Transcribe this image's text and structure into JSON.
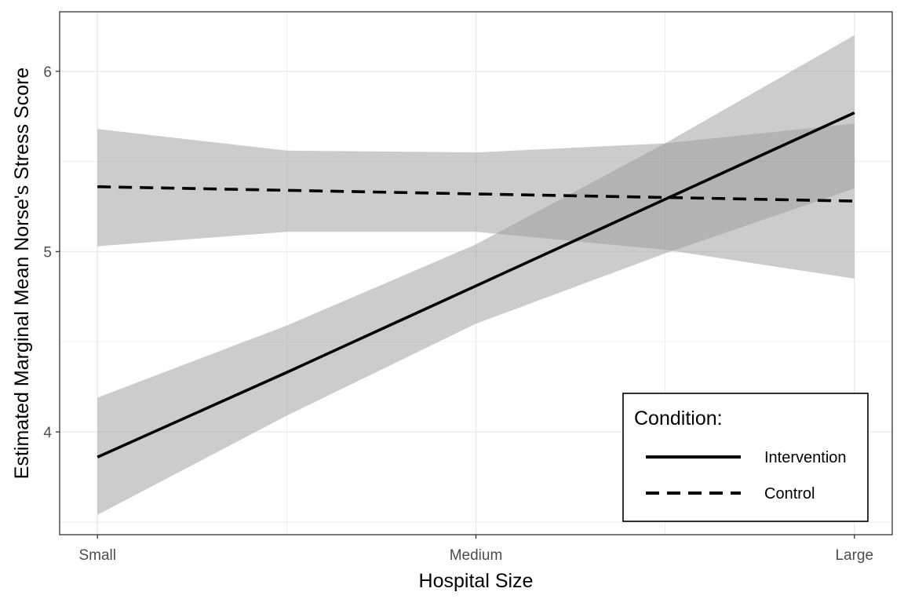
{
  "chart_data": {
    "type": "line",
    "title": "",
    "xlabel": "Hospital Size",
    "ylabel": "Estimated Marginal Mean Norse's Stress Score",
    "categories": [
      "Small",
      "Medium",
      "Large"
    ],
    "x_positions": [
      0,
      1,
      2
    ],
    "xlim": [
      -0.1,
      2.1
    ],
    "ylim": [
      3.43,
      6.33
    ],
    "y_ticks": [
      4,
      5,
      6
    ],
    "grid": true,
    "legend": {
      "title": "Condition:",
      "position": "bottom-right"
    },
    "series": [
      {
        "name": "Intervention",
        "line_style": "solid",
        "x": [
          0,
          0.5,
          1,
          1.5,
          2
        ],
        "values": [
          3.86,
          4.33,
          4.81,
          5.29,
          5.77
        ],
        "ci_lower": [
          3.54,
          4.09,
          4.6,
          4.99,
          5.35
        ],
        "ci_upper": [
          4.19,
          4.59,
          5.04,
          5.6,
          6.2
        ]
      },
      {
        "name": "Control",
        "line_style": "dashed",
        "x": [
          0,
          0.5,
          1,
          1.5,
          2
        ],
        "values": [
          5.36,
          5.34,
          5.32,
          5.3,
          5.28
        ],
        "ci_lower": [
          5.03,
          5.11,
          5.11,
          5.01,
          4.85
        ],
        "ci_upper": [
          5.68,
          5.56,
          5.55,
          5.6,
          5.71
        ]
      }
    ],
    "colors": {
      "line": "#000000",
      "ribbon": "#999999",
      "grid": "#ebebeb",
      "panel_border": "#333333"
    }
  }
}
